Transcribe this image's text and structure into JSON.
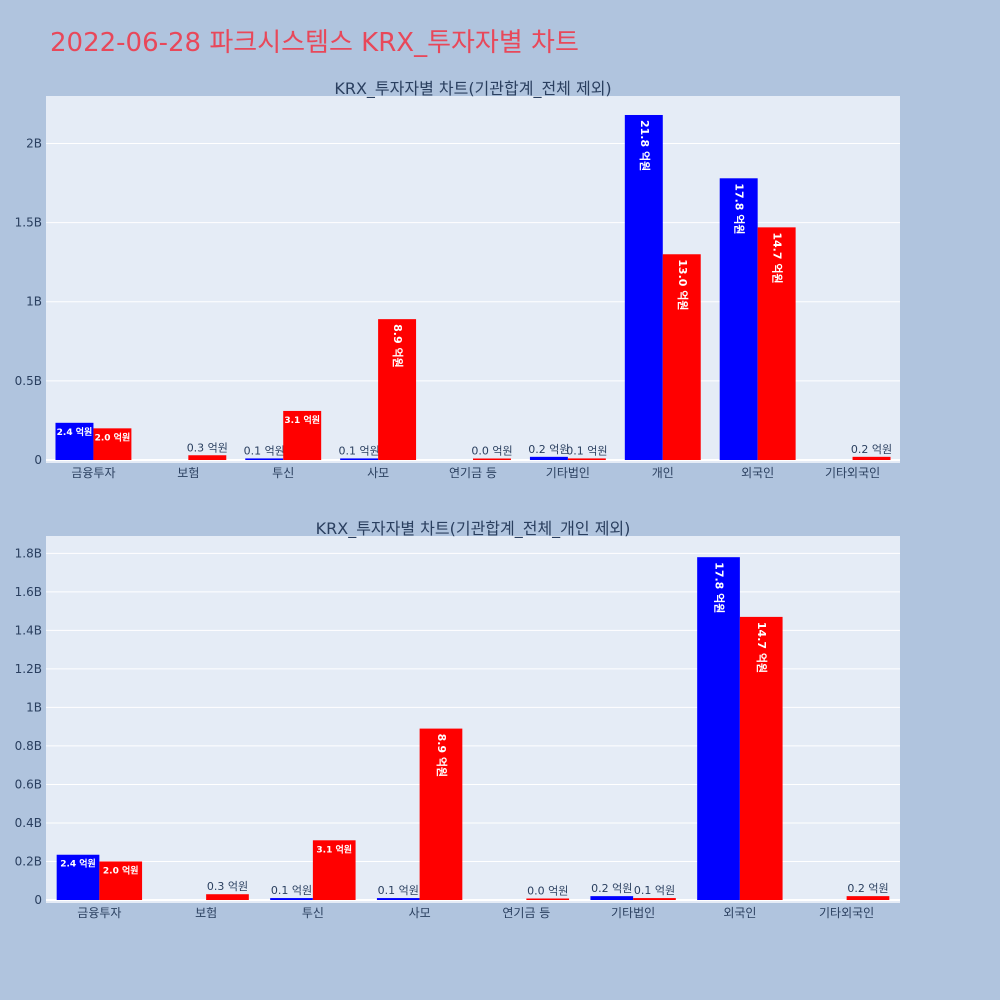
{
  "title": "2022-06-28 파크시스템스 KRX_투자자별 차트",
  "colors": {
    "background": "#b0c4de",
    "plot_bg": "#e5ecf6",
    "buy": "#0000ff",
    "sell": "#ff0000",
    "title": "#e8485a",
    "text": "#2a3f5f"
  },
  "chart_data": [
    {
      "type": "bar",
      "title": "KRX_투자자별 차트(기관합계_전체 제외)",
      "categories": [
        "금융투자",
        "보험",
        "투신",
        "사모",
        "연기금 등",
        "기타법인",
        "개인",
        "외국인",
        "기타외국인"
      ],
      "series": [
        {
          "values": [
            235000000,
            0,
            10000000,
            10000000,
            0,
            20000000,
            2180000000,
            1780000000,
            0
          ],
          "labels": [
            "2.4 억원",
            "",
            "0.1 억원",
            "0.1 억원",
            "",
            "0.2 억원",
            "21.8 억원",
            "17.8 억원",
            ""
          ]
        },
        {
          "values": [
            200000000,
            30000000,
            310000000,
            890000000,
            1000000,
            10000000,
            1300000000,
            1470000000,
            20000000
          ],
          "labels": [
            "2.0 억원",
            "0.3 억원",
            "3.1 억원",
            "8.9 억원",
            "0.0 억원",
            "0.1 억원",
            "13.0 억원",
            "14.7 억원",
            "0.2 억원"
          ]
        }
      ],
      "yticks": [
        {
          "v": 0,
          "label": "0"
        },
        {
          "v": 500000000,
          "label": "0.5B"
        },
        {
          "v": 1000000000,
          "label": "1B"
        },
        {
          "v": 1500000000,
          "label": "1.5B"
        },
        {
          "v": 2000000000,
          "label": "2B"
        }
      ],
      "ylim": [
        0,
        2300000000
      ],
      "grid": true
    },
    {
      "type": "bar",
      "title": "KRX_투자자별 차트(기관합계_전체_개인 제외)",
      "categories": [
        "금융투자",
        "보험",
        "투신",
        "사모",
        "연기금 등",
        "기타법인",
        "외국인",
        "기타외국인"
      ],
      "series": [
        {
          "values": [
            235000000,
            0,
            10000000,
            10000000,
            0,
            20000000,
            1780000000,
            0
          ],
          "labels": [
            "2.4 억원",
            "",
            "0.1 억원",
            "0.1 억원",
            "",
            "0.2 억원",
            "17.8 억원",
            ""
          ]
        },
        {
          "values": [
            200000000,
            30000000,
            310000000,
            890000000,
            1000000,
            10000000,
            1470000000,
            20000000
          ],
          "labels": [
            "2.0 억원",
            "0.3 억원",
            "3.1 억원",
            "8.9 억원",
            "0.0 억원",
            "0.1 억원",
            "14.7 억원",
            "0.2 억원"
          ]
        }
      ],
      "yticks": [
        {
          "v": 0,
          "label": "0"
        },
        {
          "v": 200000000,
          "label": "0.2B"
        },
        {
          "v": 400000000,
          "label": "0.4B"
        },
        {
          "v": 600000000,
          "label": "0.6B"
        },
        {
          "v": 800000000,
          "label": "0.8B"
        },
        {
          "v": 1000000000,
          "label": "1B"
        },
        {
          "v": 1200000000,
          "label": "1.2B"
        },
        {
          "v": 1400000000,
          "label": "1.4B"
        },
        {
          "v": 1600000000,
          "label": "1.6B"
        },
        {
          "v": 1800000000,
          "label": "1.8B"
        }
      ],
      "ylim": [
        0,
        1890000000
      ],
      "grid": true
    }
  ]
}
